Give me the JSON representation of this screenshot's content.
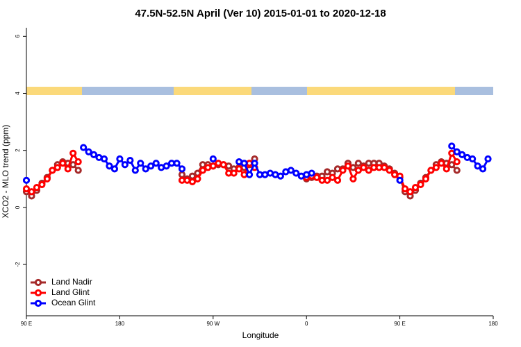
{
  "chart_data": {
    "type": "line",
    "title": "47.5N-52.5N April (Ver 10)   2015-01-01 to 2020-12-18",
    "x_label": "Longitude",
    "y_label": "XCO2 - MLO trend (ppm)",
    "x": [
      90,
      95,
      100,
      105,
      110,
      115,
      120,
      125,
      130,
      135,
      140,
      145,
      150,
      155,
      160,
      165,
      170,
      175,
      180,
      185,
      190,
      195,
      200,
      205,
      210,
      215,
      220,
      225,
      230,
      235,
      240,
      245,
      250,
      255,
      260,
      265,
      270,
      275,
      280,
      285,
      290,
      295,
      300,
      305,
      310,
      315,
      320,
      325,
      330,
      335,
      340,
      345,
      350,
      355,
      360,
      365,
      370,
      375,
      380,
      385,
      390,
      395,
      400,
      405,
      410,
      415,
      420,
      425,
      430,
      435,
      440,
      445,
      450,
      455,
      460,
      465,
      470,
      475,
      480,
      485,
      490,
      495,
      500,
      505,
      510,
      515,
      520,
      525,
      530,
      535,
      540
    ],
    "series": [
      {
        "name": "Land Nadir",
        "color": "#a52a2a",
        "values": [
          0.55,
          0.4,
          0.6,
          0.85,
          1.05,
          1.3,
          1.5,
          1.6,
          1.55,
          1.5,
          1.3,
          null,
          null,
          null,
          null,
          null,
          null,
          null,
          null,
          null,
          null,
          null,
          null,
          null,
          null,
          null,
          null,
          null,
          null,
          null,
          1.15,
          1.0,
          1.1,
          1.2,
          1.5,
          1.5,
          1.45,
          1.5,
          1.5,
          1.45,
          1.35,
          1.4,
          1.4,
          1.5,
          1.7,
          null,
          null,
          null,
          null,
          null,
          null,
          null,
          null,
          null,
          1.0,
          1.05,
          1.1,
          1.1,
          1.25,
          1.2,
          1.35,
          1.35,
          1.55,
          1.4,
          1.55,
          1.45,
          1.55,
          1.55,
          1.55,
          1.45,
          1.35,
          1.2,
          1.05,
          0.55,
          0.4,
          0.6,
          0.85,
          1.05,
          1.3,
          1.5,
          1.6,
          1.55,
          1.5,
          1.3,
          null,
          null,
          null,
          null,
          null,
          null,
          null
        ]
      },
      {
        "name": "Land Glint",
        "color": "#ff0000",
        "values": [
          0.65,
          0.55,
          0.7,
          0.8,
          1.0,
          1.3,
          1.4,
          1.55,
          1.35,
          1.9,
          1.6,
          null,
          null,
          null,
          null,
          null,
          null,
          null,
          null,
          null,
          null,
          null,
          null,
          null,
          null,
          null,
          null,
          null,
          null,
          null,
          0.95,
          0.95,
          0.9,
          1.0,
          1.3,
          1.4,
          1.45,
          1.55,
          1.5,
          1.2,
          1.2,
          1.35,
          1.15,
          1.55,
          1.4,
          null,
          null,
          null,
          null,
          null,
          null,
          null,
          null,
          null,
          1.05,
          1.1,
          1.05,
          0.95,
          0.95,
          1.05,
          0.95,
          1.3,
          1.45,
          1.0,
          1.3,
          1.4,
          1.3,
          1.4,
          1.4,
          1.4,
          1.3,
          1.15,
          1.1,
          0.65,
          0.55,
          0.7,
          0.8,
          1.0,
          1.3,
          1.4,
          1.55,
          1.35,
          1.9,
          1.6,
          null,
          null,
          null,
          null,
          null,
          null,
          null
        ]
      },
      {
        "name": "Ocean Glint",
        "color": "#0000ff",
        "values": [
          0.95,
          null,
          null,
          null,
          null,
          null,
          null,
          null,
          null,
          null,
          null,
          2.1,
          1.95,
          1.85,
          1.75,
          1.7,
          1.45,
          1.35,
          1.7,
          1.5,
          1.65,
          1.3,
          1.55,
          1.35,
          1.45,
          1.55,
          1.4,
          1.45,
          1.55,
          1.55,
          1.35,
          null,
          null,
          null,
          null,
          null,
          1.7,
          null,
          null,
          null,
          null,
          1.6,
          1.55,
          1.15,
          1.55,
          1.15,
          1.15,
          1.2,
          1.15,
          1.1,
          1.25,
          1.3,
          1.2,
          1.1,
          1.15,
          1.2,
          null,
          null,
          null,
          null,
          null,
          null,
          null,
          null,
          null,
          null,
          null,
          null,
          null,
          null,
          null,
          null,
          0.95,
          null,
          null,
          null,
          null,
          null,
          null,
          null,
          null,
          null,
          2.15,
          1.95,
          1.85,
          1.75,
          1.7,
          1.45,
          1.35,
          1.7,
          null
        ]
      }
    ],
    "xlim": [
      90,
      540
    ],
    "xticks": [
      {
        "value": 90,
        "label": "90 E"
      },
      180,
      {
        "value": 270,
        "label": "90 W"
      },
      {
        "value": 360,
        "label": "0"
      },
      {
        "value": 450,
        "label": "90 E"
      },
      {
        "value": 540,
        "label": "180"
      }
    ],
    "ylim": [
      -3.8,
      6.3
    ],
    "yticks": [
      -2,
      0,
      2,
      4,
      6
    ],
    "legend": "bottom-left"
  }
}
